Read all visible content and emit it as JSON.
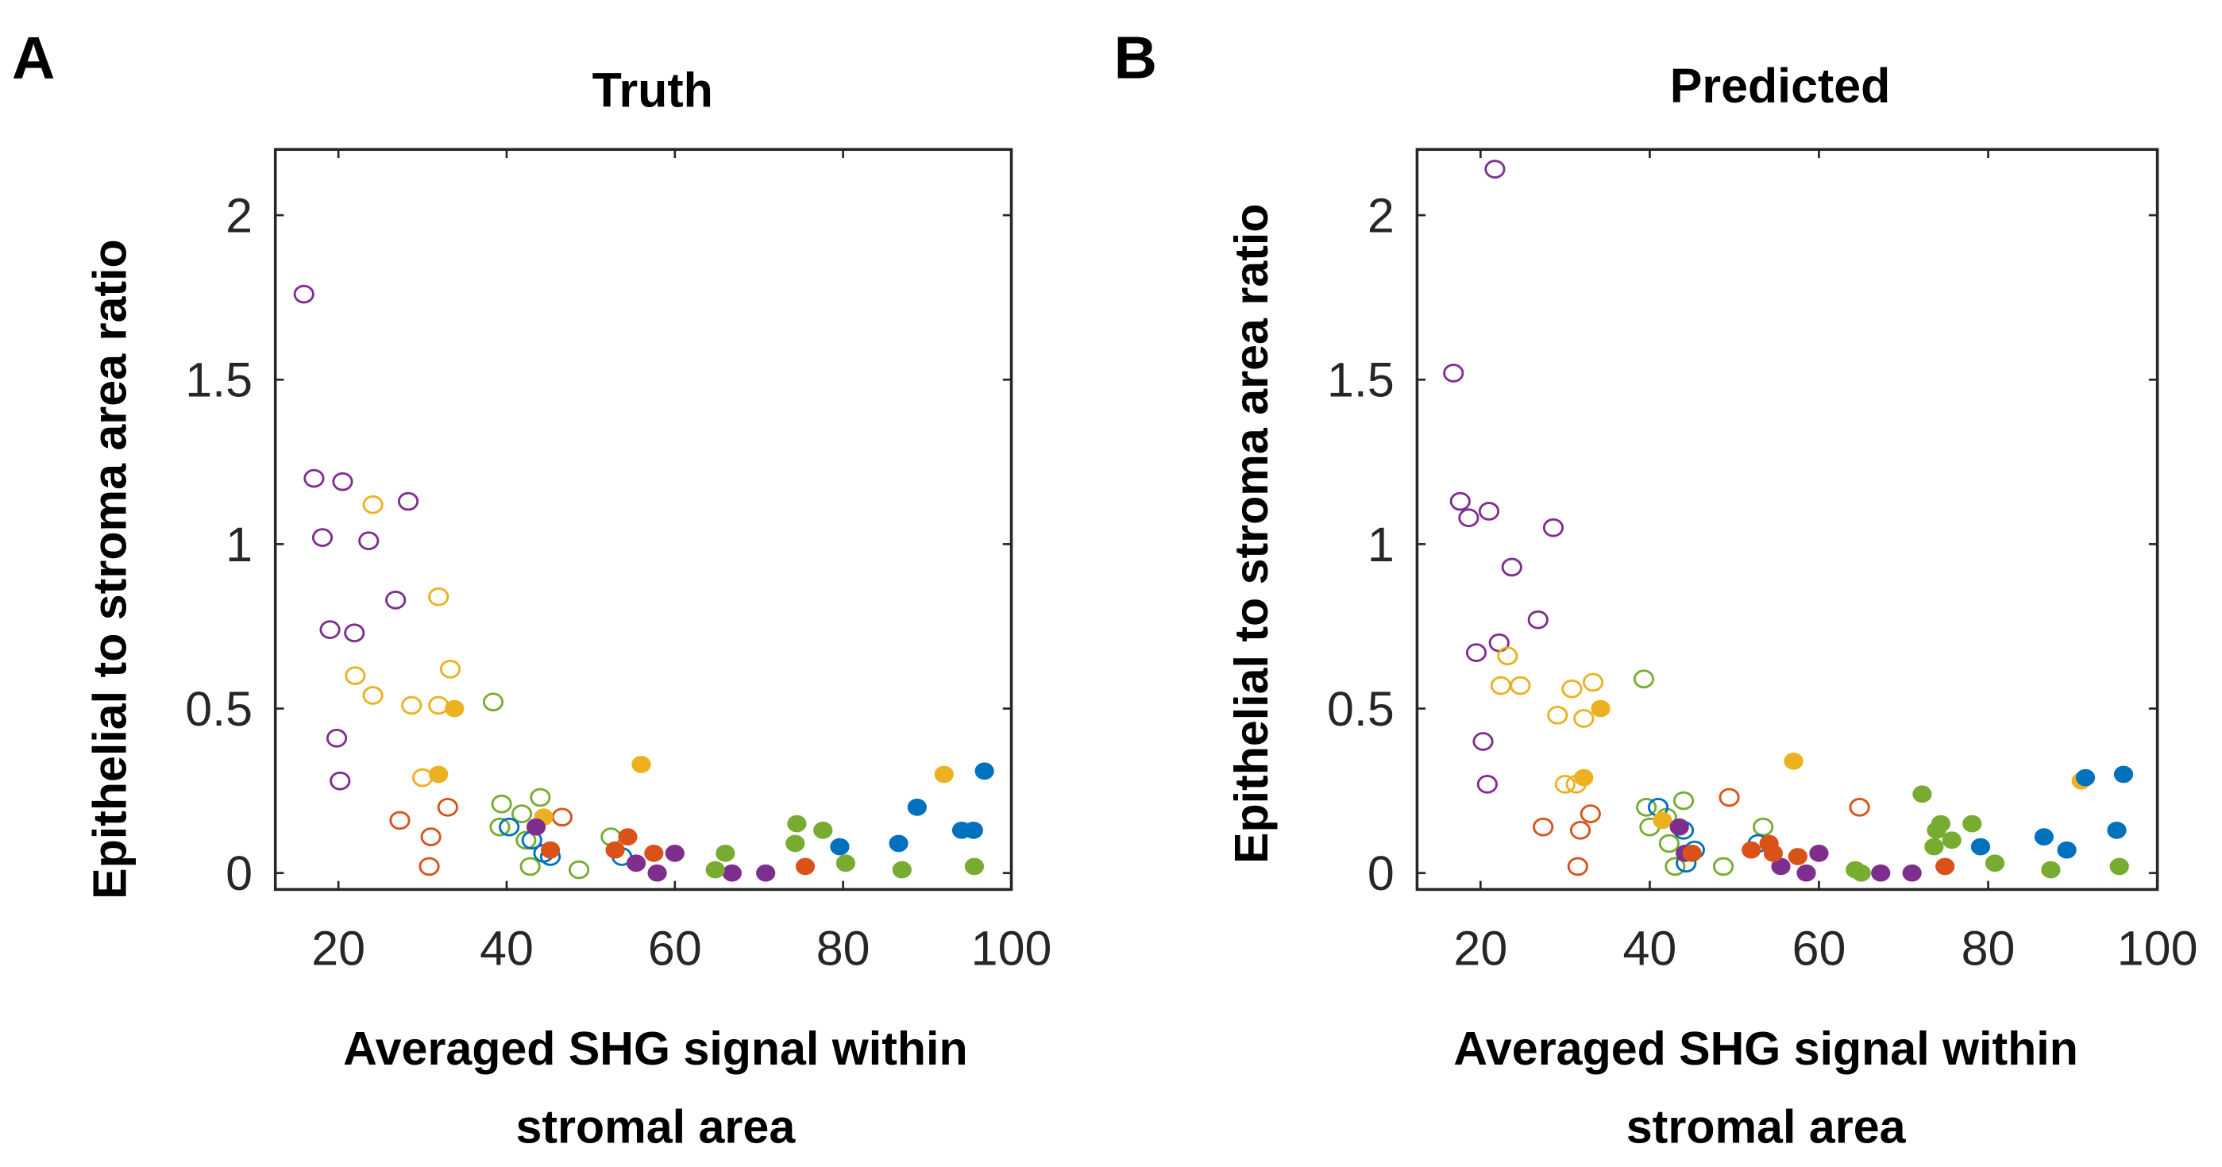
{
  "colors": {
    "blue": "#0072BD",
    "orange": "#D95319",
    "yellow": "#EDB120",
    "purple": "#7E2F8E",
    "green": "#77AC30"
  },
  "chart_data": [
    {
      "type": "scatter",
      "panel_letter": "A",
      "title": "Truth",
      "xlabel_lines": [
        "Averaged SHG signal within",
        "stromal area"
      ],
      "ylabel": "Epithelial to stroma area ratio",
      "xlim": [
        12.5,
        100
      ],
      "ylim": [
        -0.05,
        2.2
      ],
      "xticks": [
        20,
        40,
        60,
        80,
        100
      ],
      "yticks": [
        0,
        0.5,
        1,
        1.5,
        2
      ],
      "ytick_labels": [
        "0",
        "0.5",
        "1",
        "1.5",
        "2"
      ],
      "grid": false,
      "series": [
        {
          "name": "purple-open",
          "color": "purple",
          "filled": false,
          "points": [
            [
              15.9,
              1.76
            ],
            [
              17.1,
              1.2
            ],
            [
              20.5,
              1.19
            ],
            [
              18.1,
              1.02
            ],
            [
              23.6,
              1.01
            ],
            [
              28.3,
              1.13
            ],
            [
              26.8,
              0.83
            ],
            [
              19,
              0.74
            ],
            [
              21.9,
              0.73
            ],
            [
              19.8,
              0.41
            ],
            [
              20.2,
              0.28
            ]
          ]
        },
        {
          "name": "yellow-open",
          "color": "yellow",
          "filled": false,
          "points": [
            [
              24.1,
              1.12
            ],
            [
              31.9,
              0.84
            ],
            [
              33.3,
              0.62
            ],
            [
              22,
              0.6
            ],
            [
              24.1,
              0.54
            ],
            [
              28.7,
              0.51
            ],
            [
              31.9,
              0.51
            ],
            [
              30,
              0.29
            ]
          ]
        },
        {
          "name": "orange-open",
          "color": "orange",
          "filled": false,
          "points": [
            [
              27.3,
              0.16
            ],
            [
              33,
              0.2
            ],
            [
              31,
              0.11
            ],
            [
              30.8,
              0.02
            ],
            [
              46.6,
              0.17
            ]
          ]
        },
        {
          "name": "green-open",
          "color": "green",
          "filled": false,
          "points": [
            [
              38.4,
              0.52
            ],
            [
              39.4,
              0.21
            ],
            [
              44,
              0.23
            ],
            [
              41.8,
              0.18
            ],
            [
              39.2,
              0.14
            ],
            [
              42.3,
              0.1
            ],
            [
              42.8,
              0.02
            ],
            [
              48.6,
              0.01
            ],
            [
              52.4,
              0.11
            ]
          ]
        },
        {
          "name": "blue-open",
          "color": "blue",
          "filled": false,
          "points": [
            [
              40.3,
              0.14
            ],
            [
              44.4,
              0.06
            ],
            [
              45.2,
              0.05
            ],
            [
              53.7,
              0.05
            ],
            [
              43,
              0.1
            ]
          ]
        },
        {
          "name": "yellow-filled",
          "color": "yellow",
          "filled": true,
          "points": [
            [
              33.8,
              0.5
            ],
            [
              31.9,
              0.3
            ],
            [
              56,
              0.33
            ],
            [
              92,
              0.3
            ],
            [
              44.4,
              0.17
            ]
          ]
        },
        {
          "name": "purple-filled",
          "color": "purple",
          "filled": true,
          "points": [
            [
              43.5,
              0.14
            ],
            [
              55.4,
              0.03
            ],
            [
              57.9,
              0.0
            ],
            [
              60,
              0.06
            ],
            [
              66.8,
              0.0
            ],
            [
              70.8,
              0.0
            ]
          ]
        },
        {
          "name": "orange-filled",
          "color": "orange",
          "filled": true,
          "points": [
            [
              54.4,
              0.11
            ],
            [
              52.9,
              0.07
            ],
            [
              57.5,
              0.06
            ],
            [
              45.2,
              0.07
            ],
            [
              75.5,
              0.02
            ]
          ]
        },
        {
          "name": "green-filled",
          "color": "green",
          "filled": true,
          "points": [
            [
              66,
              0.06
            ],
            [
              64.8,
              0.01
            ],
            [
              74.5,
              0.15
            ],
            [
              77.6,
              0.13
            ],
            [
              74.3,
              0.09
            ],
            [
              80.3,
              0.03
            ],
            [
              87,
              0.01
            ],
            [
              95.6,
              0.02
            ]
          ]
        },
        {
          "name": "blue-filled",
          "color": "blue",
          "filled": true,
          "points": [
            [
              88.8,
              0.2
            ],
            [
              79.6,
              0.08
            ],
            [
              86.6,
              0.09
            ],
            [
              94.1,
              0.13
            ],
            [
              95.5,
              0.13
            ],
            [
              96.8,
              0.31
            ]
          ]
        }
      ]
    },
    {
      "type": "scatter",
      "panel_letter": "B",
      "title": "Predicted",
      "xlabel_lines": [
        "Averaged SHG signal within",
        "stromal area"
      ],
      "ylabel": "Epithelial to stroma area ratio",
      "xlim": [
        12.5,
        100
      ],
      "ylim": [
        -0.05,
        2.2
      ],
      "xticks": [
        20,
        40,
        60,
        80,
        100
      ],
      "yticks": [
        0,
        0.5,
        1,
        1.5,
        2
      ],
      "ytick_labels": [
        "0",
        "0.5",
        "1",
        "1.5",
        "2"
      ],
      "grid": false,
      "series": [
        {
          "name": "purple-open",
          "color": "purple",
          "filled": false,
          "points": [
            [
              21.7,
              2.14
            ],
            [
              16.8,
              1.52
            ],
            [
              17.6,
              1.13
            ],
            [
              18.6,
              1.08
            ],
            [
              21,
              1.1
            ],
            [
              28.6,
              1.05
            ],
            [
              23.7,
              0.93
            ],
            [
              26.8,
              0.77
            ],
            [
              22.2,
              0.7
            ],
            [
              19.5,
              0.67
            ],
            [
              20.3,
              0.4
            ],
            [
              20.8,
              0.27
            ]
          ]
        },
        {
          "name": "yellow-open",
          "color": "yellow",
          "filled": false,
          "points": [
            [
              23.2,
              0.66
            ],
            [
              22.4,
              0.57
            ],
            [
              24.7,
              0.57
            ],
            [
              30.8,
              0.56
            ],
            [
              33.3,
              0.58
            ],
            [
              29.1,
              0.48
            ],
            [
              32.2,
              0.47
            ],
            [
              30,
              0.27
            ],
            [
              31.3,
              0.27
            ]
          ]
        },
        {
          "name": "orange-open",
          "color": "orange",
          "filled": false,
          "points": [
            [
              27.4,
              0.14
            ],
            [
              33,
              0.18
            ],
            [
              31.8,
              0.13
            ],
            [
              31.5,
              0.02
            ],
            [
              49.4,
              0.23
            ],
            [
              64.8,
              0.2
            ]
          ]
        },
        {
          "name": "green-open",
          "color": "green",
          "filled": false,
          "points": [
            [
              39.3,
              0.59
            ],
            [
              39.6,
              0.2
            ],
            [
              44,
              0.22
            ],
            [
              42,
              0.17
            ],
            [
              40,
              0.14
            ],
            [
              42.3,
              0.09
            ],
            [
              43,
              0.02
            ],
            [
              48.7,
              0.02
            ],
            [
              53.4,
              0.14
            ]
          ]
        },
        {
          "name": "blue-open",
          "color": "blue",
          "filled": false,
          "points": [
            [
              41,
              0.2
            ],
            [
              44,
              0.13
            ],
            [
              45.3,
              0.07
            ],
            [
              44.3,
              0.03
            ],
            [
              52.8,
              0.09
            ]
          ]
        },
        {
          "name": "yellow-filled",
          "color": "yellow",
          "filled": true,
          "points": [
            [
              34.2,
              0.5
            ],
            [
              32.2,
              0.29
            ],
            [
              57,
              0.34
            ],
            [
              91,
              0.28
            ],
            [
              41.5,
              0.16
            ]
          ]
        },
        {
          "name": "purple-filled",
          "color": "purple",
          "filled": true,
          "points": [
            [
              43.5,
              0.14
            ],
            [
              55.5,
              0.02
            ],
            [
              58.5,
              0.0
            ],
            [
              60,
              0.06
            ],
            [
              67.3,
              0.0
            ],
            [
              71,
              0.0
            ],
            [
              44.2,
              0.06
            ]
          ]
        },
        {
          "name": "orange-filled",
          "color": "orange",
          "filled": true,
          "points": [
            [
              52,
              0.07
            ],
            [
              54.1,
              0.09
            ],
            [
              57.5,
              0.05
            ],
            [
              45,
              0.06
            ],
            [
              74.9,
              0.02
            ],
            [
              54.6,
              0.06
            ]
          ]
        },
        {
          "name": "green-filled",
          "color": "green",
          "filled": true,
          "points": [
            [
              72.2,
              0.24
            ],
            [
              73.9,
              0.13
            ],
            [
              75.7,
              0.1
            ],
            [
              74.4,
              0.15
            ],
            [
              78.1,
              0.15
            ],
            [
              73.6,
              0.08
            ],
            [
              80.8,
              0.03
            ],
            [
              87.4,
              0.01
            ],
            [
              95.5,
              0.02
            ],
            [
              64.3,
              0.01
            ],
            [
              65,
              0.0
            ]
          ]
        },
        {
          "name": "blue-filled",
          "color": "blue",
          "filled": true,
          "points": [
            [
              79.1,
              0.08
            ],
            [
              86.6,
              0.11
            ],
            [
              89.3,
              0.07
            ],
            [
              91.5,
              0.29
            ],
            [
              95.2,
              0.13
            ],
            [
              96,
              0.3
            ]
          ]
        }
      ]
    }
  ]
}
